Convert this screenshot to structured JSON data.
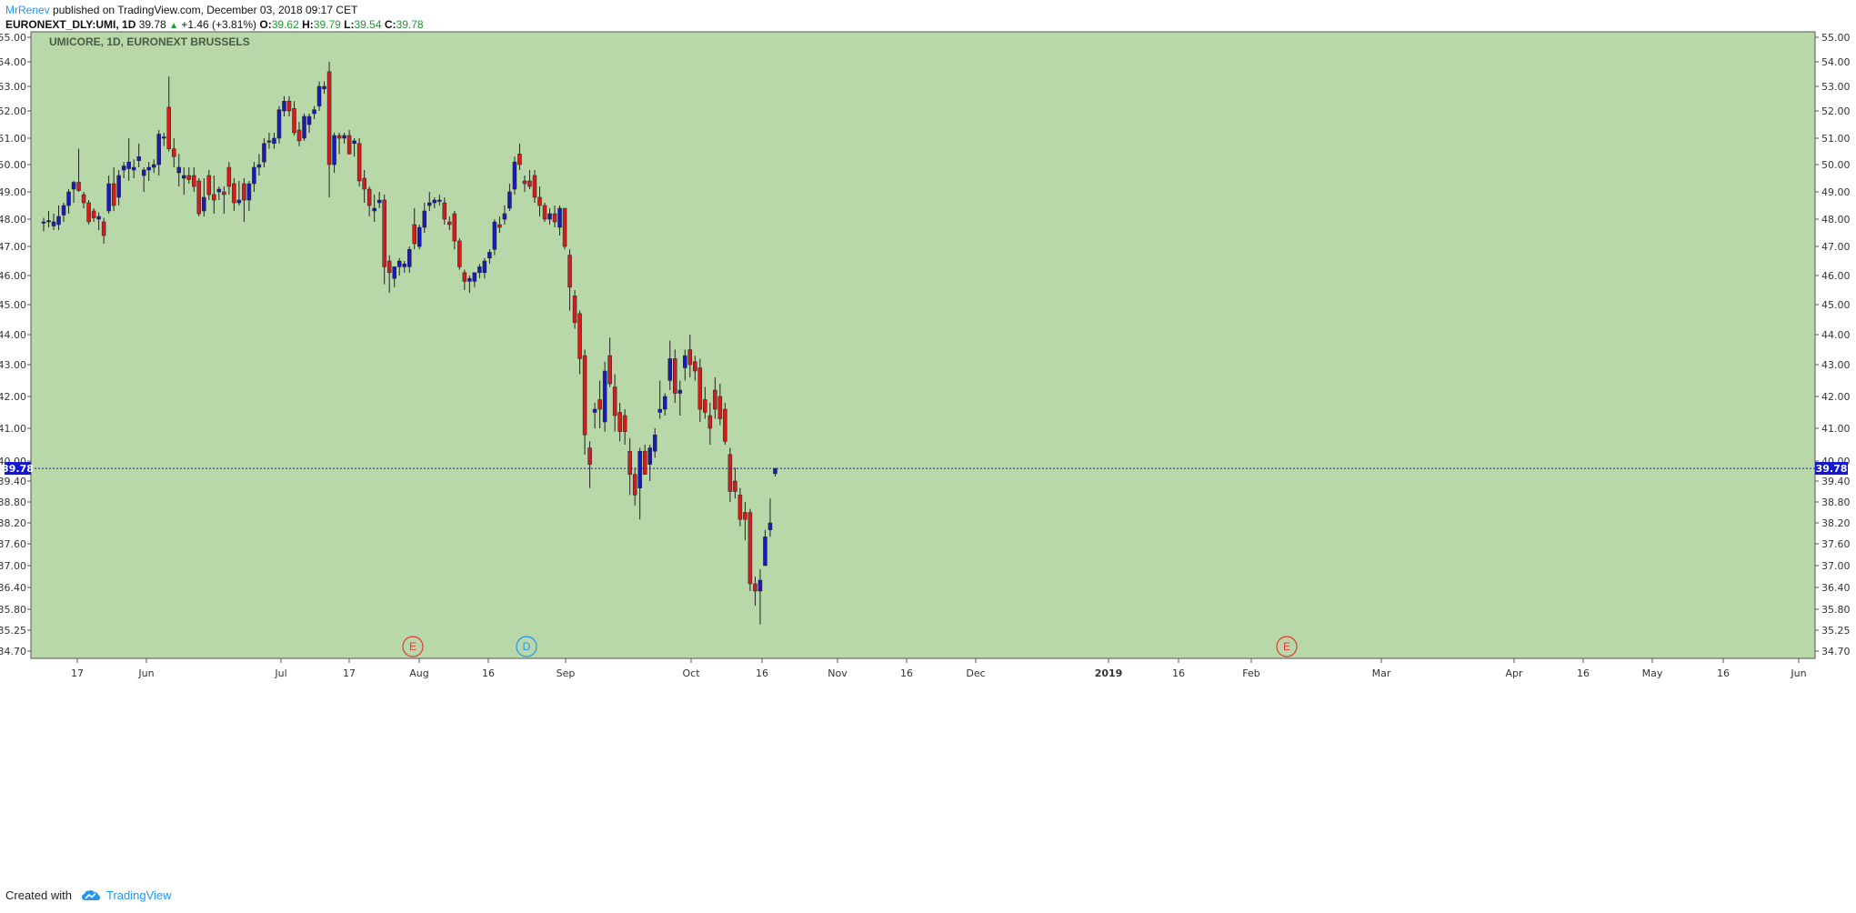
{
  "header": {
    "author": "MrRenev",
    "published": " published on TradingView.com, December 03, 2018 09:17 CET",
    "symbol": "EURONEXT_DLY:UMI, 1D",
    "last": "39.78",
    "change": "+1.46 (+3.81%)",
    "open_label": "O:",
    "open": "39.62",
    "high_label": "H:",
    "high": "39.79",
    "low_label": "L:",
    "low": "39.54",
    "close_label": "C:",
    "close": "39.78"
  },
  "footer": {
    "created_with": "Created with",
    "brand": "TradingView"
  },
  "chart_data": {
    "type": "candlestick",
    "title": "UMICORE, 1D, EURONEXT BRUSSELS",
    "last_price": 39.78,
    "last_price_label": "39.78",
    "ylim": [
      34.5,
      55.2
    ],
    "y_ticks": [
      "55.00",
      "54.00",
      "53.00",
      "52.00",
      "51.00",
      "50.00",
      "49.00",
      "48.00",
      "47.00",
      "46.00",
      "45.00",
      "44.00",
      "43.00",
      "42.00",
      "41.00",
      "40.00",
      "39.40",
      "38.80",
      "38.20",
      "37.60",
      "37.00",
      "36.40",
      "35.80",
      "35.25",
      "34.70"
    ],
    "x_ticks": [
      {
        "label": "17",
        "bold": false
      },
      {
        "label": "Jun",
        "bold": false
      },
      {
        "label": "Jul",
        "bold": false
      },
      {
        "label": "17",
        "bold": false
      },
      {
        "label": "Aug",
        "bold": false
      },
      {
        "label": "16",
        "bold": false
      },
      {
        "label": "Sep",
        "bold": false
      },
      {
        "label": "Oct",
        "bold": false
      },
      {
        "label": "16",
        "bold": false
      },
      {
        "label": "Nov",
        "bold": false
      },
      {
        "label": "16",
        "bold": false
      },
      {
        "label": "Dec",
        "bold": false
      },
      {
        "label": "2019",
        "bold": true
      },
      {
        "label": "16",
        "bold": false
      },
      {
        "label": "Feb",
        "bold": false
      },
      {
        "label": "Mar",
        "bold": false
      },
      {
        "label": "Apr",
        "bold": false
      },
      {
        "label": "16",
        "bold": false
      },
      {
        "label": "May",
        "bold": false
      },
      {
        "label": "16",
        "bold": false
      },
      {
        "label": "Jun",
        "bold": false
      }
    ],
    "events": [
      {
        "label": "E",
        "color": "#e53935"
      },
      {
        "label": "D",
        "color": "#2196f3"
      },
      {
        "label": "E",
        "color": "#e53935"
      }
    ],
    "colors": {
      "background": "#b8d8aa",
      "up": "#1a1ab8",
      "down": "#d41c1c",
      "wick": "#222222",
      "price_line": "#1a1ab8"
    },
    "candles": [
      {
        "o": 47.85,
        "h": 48.05,
        "l": 47.55,
        "c": 47.9
      },
      {
        "o": 47.9,
        "h": 48.3,
        "l": 47.7,
        "c": 47.95
      },
      {
        "o": 47.75,
        "h": 48.2,
        "l": 47.6,
        "c": 47.9
      },
      {
        "o": 47.8,
        "h": 48.5,
        "l": 47.6,
        "c": 48.1
      },
      {
        "o": 48.15,
        "h": 48.6,
        "l": 47.9,
        "c": 48.5
      },
      {
        "o": 48.5,
        "h": 49.1,
        "l": 48.2,
        "c": 49.0
      },
      {
        "o": 49.1,
        "h": 49.4,
        "l": 48.6,
        "c": 49.35
      },
      {
        "o": 49.35,
        "h": 50.6,
        "l": 49.0,
        "c": 49.05
      },
      {
        "o": 48.9,
        "h": 49.0,
        "l": 48.4,
        "c": 48.6
      },
      {
        "o": 48.6,
        "h": 48.7,
        "l": 47.8,
        "c": 47.9
      },
      {
        "o": 48.3,
        "h": 48.4,
        "l": 47.9,
        "c": 48.05
      },
      {
        "o": 48.0,
        "h": 48.25,
        "l": 47.6,
        "c": 48.1
      },
      {
        "o": 47.9,
        "h": 48.05,
        "l": 47.1,
        "c": 47.4
      },
      {
        "o": 48.3,
        "h": 49.6,
        "l": 48.2,
        "c": 49.3
      },
      {
        "o": 49.3,
        "h": 49.9,
        "l": 48.3,
        "c": 48.5
      },
      {
        "o": 48.8,
        "h": 49.8,
        "l": 48.5,
        "c": 49.6
      },
      {
        "o": 49.8,
        "h": 50.1,
        "l": 49.5,
        "c": 49.95
      },
      {
        "o": 49.85,
        "h": 51.0,
        "l": 49.4,
        "c": 50.1
      },
      {
        "o": 49.8,
        "h": 50.2,
        "l": 49.5,
        "c": 49.9
      },
      {
        "o": 50.15,
        "h": 50.8,
        "l": 49.9,
        "c": 50.3
      },
      {
        "o": 49.6,
        "h": 49.9,
        "l": 49.0,
        "c": 49.8
      },
      {
        "o": 49.8,
        "h": 50.1,
        "l": 49.4,
        "c": 49.9
      },
      {
        "o": 49.9,
        "h": 50.2,
        "l": 49.7,
        "c": 50.0
      },
      {
        "o": 50.0,
        "h": 51.3,
        "l": 49.6,
        "c": 51.15
      },
      {
        "o": 51.0,
        "h": 51.2,
        "l": 50.7,
        "c": 51.05
      },
      {
        "o": 52.15,
        "h": 53.4,
        "l": 50.5,
        "c": 50.6
      },
      {
        "o": 50.6,
        "h": 51.0,
        "l": 49.9,
        "c": 50.3
      },
      {
        "o": 49.7,
        "h": 50.4,
        "l": 49.2,
        "c": 49.9
      },
      {
        "o": 49.5,
        "h": 49.9,
        "l": 48.9,
        "c": 49.6
      },
      {
        "o": 49.6,
        "h": 49.9,
        "l": 49.3,
        "c": 49.45
      },
      {
        "o": 49.6,
        "h": 49.9,
        "l": 49.0,
        "c": 49.2
      },
      {
        "o": 49.4,
        "h": 49.5,
        "l": 48.1,
        "c": 48.2
      },
      {
        "o": 48.3,
        "h": 49.5,
        "l": 48.1,
        "c": 48.8
      },
      {
        "o": 49.6,
        "h": 49.8,
        "l": 48.7,
        "c": 48.9
      },
      {
        "o": 48.9,
        "h": 49.6,
        "l": 48.2,
        "c": 48.7
      },
      {
        "o": 49.0,
        "h": 49.2,
        "l": 48.7,
        "c": 49.1
      },
      {
        "o": 49.0,
        "h": 49.2,
        "l": 48.2,
        "c": 48.9
      },
      {
        "o": 49.9,
        "h": 50.1,
        "l": 48.9,
        "c": 49.2
      },
      {
        "o": 49.3,
        "h": 49.5,
        "l": 48.3,
        "c": 48.6
      },
      {
        "o": 48.6,
        "h": 49.4,
        "l": 48.5,
        "c": 48.7
      },
      {
        "o": 49.3,
        "h": 49.5,
        "l": 47.9,
        "c": 48.7
      },
      {
        "o": 48.7,
        "h": 49.4,
        "l": 48.3,
        "c": 49.3
      },
      {
        "o": 49.3,
        "h": 50.1,
        "l": 49.0,
        "c": 49.9
      },
      {
        "o": 49.9,
        "h": 50.4,
        "l": 49.6,
        "c": 50.0
      },
      {
        "o": 50.1,
        "h": 51.0,
        "l": 49.9,
        "c": 50.8
      },
      {
        "o": 50.9,
        "h": 51.2,
        "l": 50.6,
        "c": 50.9
      },
      {
        "o": 50.8,
        "h": 51.2,
        "l": 50.6,
        "c": 51.0
      },
      {
        "o": 51.0,
        "h": 52.2,
        "l": 50.8,
        "c": 52.05
      },
      {
        "o": 52.0,
        "h": 52.6,
        "l": 51.8,
        "c": 52.4
      },
      {
        "o": 52.4,
        "h": 52.6,
        "l": 51.8,
        "c": 52.0
      },
      {
        "o": 52.1,
        "h": 52.4,
        "l": 51.1,
        "c": 51.2
      },
      {
        "o": 51.3,
        "h": 51.6,
        "l": 50.7,
        "c": 50.9
      },
      {
        "o": 51.0,
        "h": 51.9,
        "l": 50.9,
        "c": 51.8
      },
      {
        "o": 51.5,
        "h": 51.9,
        "l": 51.2,
        "c": 51.8
      },
      {
        "o": 51.9,
        "h": 52.2,
        "l": 51.7,
        "c": 52.05
      },
      {
        "o": 52.2,
        "h": 53.2,
        "l": 52.0,
        "c": 53.0
      },
      {
        "o": 52.9,
        "h": 53.2,
        "l": 52.7,
        "c": 53.0
      },
      {
        "o": 53.6,
        "h": 54.0,
        "l": 48.8,
        "c": 50.0
      },
      {
        "o": 50.0,
        "h": 51.2,
        "l": 49.7,
        "c": 51.1
      },
      {
        "o": 51.1,
        "h": 51.2,
        "l": 50.4,
        "c": 51.0
      },
      {
        "o": 51.0,
        "h": 51.2,
        "l": 50.8,
        "c": 51.1
      },
      {
        "o": 51.1,
        "h": 51.3,
        "l": 50.4,
        "c": 50.4
      },
      {
        "o": 50.8,
        "h": 51.0,
        "l": 50.3,
        "c": 50.9
      },
      {
        "o": 50.8,
        "h": 51.0,
        "l": 49.2,
        "c": 49.4
      },
      {
        "o": 49.5,
        "h": 49.8,
        "l": 48.6,
        "c": 49.1
      },
      {
        "o": 49.1,
        "h": 49.2,
        "l": 48.1,
        "c": 48.5
      },
      {
        "o": 48.3,
        "h": 48.9,
        "l": 47.9,
        "c": 48.4
      },
      {
        "o": 48.6,
        "h": 49.0,
        "l": 48.4,
        "c": 48.7
      },
      {
        "o": 48.7,
        "h": 48.9,
        "l": 45.7,
        "c": 46.3
      },
      {
        "o": 46.5,
        "h": 46.7,
        "l": 45.4,
        "c": 46.1
      },
      {
        "o": 45.9,
        "h": 46.3,
        "l": 45.6,
        "c": 46.3
      },
      {
        "o": 46.3,
        "h": 46.6,
        "l": 46.0,
        "c": 46.5
      },
      {
        "o": 46.3,
        "h": 46.5,
        "l": 46.1,
        "c": 46.4
      },
      {
        "o": 46.3,
        "h": 47.0,
        "l": 46.1,
        "c": 46.9
      },
      {
        "o": 47.8,
        "h": 48.4,
        "l": 46.9,
        "c": 47.1
      },
      {
        "o": 47.0,
        "h": 47.8,
        "l": 46.9,
        "c": 47.7
      },
      {
        "o": 47.7,
        "h": 48.6,
        "l": 47.5,
        "c": 48.3
      },
      {
        "o": 48.5,
        "h": 49.0,
        "l": 48.3,
        "c": 48.6
      },
      {
        "o": 48.6,
        "h": 48.8,
        "l": 48.4,
        "c": 48.7
      },
      {
        "o": 48.7,
        "h": 48.9,
        "l": 48.5,
        "c": 48.7
      },
      {
        "o": 48.6,
        "h": 48.8,
        "l": 47.8,
        "c": 48.0
      },
      {
        "o": 47.9,
        "h": 48.1,
        "l": 47.6,
        "c": 47.8
      },
      {
        "o": 48.2,
        "h": 48.3,
        "l": 46.9,
        "c": 47.2
      },
      {
        "o": 47.2,
        "h": 47.3,
        "l": 46.2,
        "c": 46.3
      },
      {
        "o": 46.1,
        "h": 46.2,
        "l": 45.5,
        "c": 45.8
      },
      {
        "o": 45.8,
        "h": 46.0,
        "l": 45.4,
        "c": 45.9
      },
      {
        "o": 45.8,
        "h": 46.1,
        "l": 45.6,
        "c": 46.1
      },
      {
        "o": 46.1,
        "h": 46.4,
        "l": 45.9,
        "c": 46.3
      },
      {
        "o": 46.1,
        "h": 46.6,
        "l": 45.9,
        "c": 46.5
      },
      {
        "o": 46.6,
        "h": 46.9,
        "l": 46.4,
        "c": 46.8
      },
      {
        "o": 46.9,
        "h": 48.0,
        "l": 46.7,
        "c": 47.9
      },
      {
        "o": 47.8,
        "h": 48.1,
        "l": 47.5,
        "c": 47.7
      },
      {
        "o": 48.0,
        "h": 48.5,
        "l": 47.8,
        "c": 48.2
      },
      {
        "o": 48.4,
        "h": 49.3,
        "l": 48.3,
        "c": 49.0
      },
      {
        "o": 49.1,
        "h": 50.3,
        "l": 48.9,
        "c": 50.1
      },
      {
        "o": 50.4,
        "h": 50.8,
        "l": 49.8,
        "c": 50.0
      },
      {
        "o": 49.4,
        "h": 49.6,
        "l": 49.0,
        "c": 49.3
      },
      {
        "o": 49.4,
        "h": 49.8,
        "l": 49.1,
        "c": 49.2
      },
      {
        "o": 49.6,
        "h": 49.8,
        "l": 48.6,
        "c": 48.8
      },
      {
        "o": 48.8,
        "h": 49.2,
        "l": 48.1,
        "c": 48.5
      },
      {
        "o": 48.5,
        "h": 48.6,
        "l": 47.9,
        "c": 48.0
      },
      {
        "o": 48.0,
        "h": 48.4,
        "l": 47.8,
        "c": 48.2
      },
      {
        "o": 48.2,
        "h": 48.5,
        "l": 47.7,
        "c": 47.9
      },
      {
        "o": 47.7,
        "h": 48.5,
        "l": 47.4,
        "c": 48.4
      },
      {
        "o": 48.4,
        "h": 48.4,
        "l": 46.9,
        "c": 47.0
      },
      {
        "o": 46.7,
        "h": 46.9,
        "l": 44.8,
        "c": 45.6
      },
      {
        "o": 45.3,
        "h": 45.5,
        "l": 44.2,
        "c": 44.4
      },
      {
        "o": 44.7,
        "h": 44.8,
        "l": 42.7,
        "c": 43.2
      },
      {
        "o": 43.3,
        "h": 43.5,
        "l": 40.2,
        "c": 40.8
      },
      {
        "o": 40.4,
        "h": 40.6,
        "l": 39.2,
        "c": 39.9
      },
      {
        "o": 41.5,
        "h": 41.8,
        "l": 41.0,
        "c": 41.6
      },
      {
        "o": 41.9,
        "h": 42.5,
        "l": 41.0,
        "c": 41.6
      },
      {
        "o": 41.2,
        "h": 43.1,
        "l": 40.9,
        "c": 42.8
      },
      {
        "o": 43.3,
        "h": 43.9,
        "l": 42.3,
        "c": 42.4
      },
      {
        "o": 42.3,
        "h": 42.7,
        "l": 40.9,
        "c": 41.4
      },
      {
        "o": 41.5,
        "h": 41.8,
        "l": 40.6,
        "c": 40.9
      },
      {
        "o": 41.4,
        "h": 41.6,
        "l": 40.5,
        "c": 40.9
      },
      {
        "o": 40.3,
        "h": 40.7,
        "l": 39.0,
        "c": 39.6
      },
      {
        "o": 39.6,
        "h": 39.8,
        "l": 38.7,
        "c": 39.0
      },
      {
        "o": 39.2,
        "h": 40.4,
        "l": 38.3,
        "c": 40.3
      },
      {
        "o": 40.3,
        "h": 40.5,
        "l": 39.8,
        "c": 39.6
      },
      {
        "o": 39.9,
        "h": 40.5,
        "l": 39.4,
        "c": 40.4
      },
      {
        "o": 40.3,
        "h": 41.0,
        "l": 40.1,
        "c": 40.8
      },
      {
        "o": 41.5,
        "h": 42.5,
        "l": 41.3,
        "c": 41.6
      },
      {
        "o": 41.6,
        "h": 42.1,
        "l": 41.4,
        "c": 42.0
      },
      {
        "o": 42.5,
        "h": 43.8,
        "l": 42.2,
        "c": 43.2
      },
      {
        "o": 43.2,
        "h": 43.5,
        "l": 41.8,
        "c": 42.1
      },
      {
        "o": 42.1,
        "h": 42.5,
        "l": 41.4,
        "c": 42.2
      },
      {
        "o": 42.9,
        "h": 43.5,
        "l": 42.5,
        "c": 43.3
      },
      {
        "o": 43.5,
        "h": 44.0,
        "l": 42.6,
        "c": 43.0
      },
      {
        "o": 43.1,
        "h": 43.3,
        "l": 42.5,
        "c": 42.8
      },
      {
        "o": 42.9,
        "h": 43.2,
        "l": 41.2,
        "c": 41.6
      },
      {
        "o": 41.9,
        "h": 42.3,
        "l": 41.3,
        "c": 41.5
      },
      {
        "o": 41.4,
        "h": 41.8,
        "l": 40.5,
        "c": 41.0
      },
      {
        "o": 42.2,
        "h": 42.6,
        "l": 41.3,
        "c": 41.6
      },
      {
        "o": 42.0,
        "h": 42.4,
        "l": 41.1,
        "c": 41.3
      },
      {
        "o": 41.6,
        "h": 41.8,
        "l": 40.5,
        "c": 40.6
      },
      {
        "o": 40.2,
        "h": 40.4,
        "l": 38.8,
        "c": 39.1
      },
      {
        "o": 39.4,
        "h": 39.8,
        "l": 38.9,
        "c": 39.1
      },
      {
        "o": 39.0,
        "h": 39.2,
        "l": 38.1,
        "c": 38.3
      },
      {
        "o": 38.5,
        "h": 38.8,
        "l": 37.7,
        "c": 38.3
      },
      {
        "o": 38.5,
        "h": 38.6,
        "l": 36.3,
        "c": 36.5
      },
      {
        "o": 36.5,
        "h": 36.7,
        "l": 35.9,
        "c": 36.3
      },
      {
        "o": 36.3,
        "h": 36.9,
        "l": 35.4,
        "c": 36.6
      },
      {
        "o": 37.0,
        "h": 38.0,
        "l": 37.0,
        "c": 37.8
      },
      {
        "o": 38.0,
        "h": 38.9,
        "l": 37.8,
        "c": 38.2
      },
      {
        "o": 39.62,
        "h": 39.79,
        "l": 39.54,
        "c": 39.78
      }
    ]
  }
}
